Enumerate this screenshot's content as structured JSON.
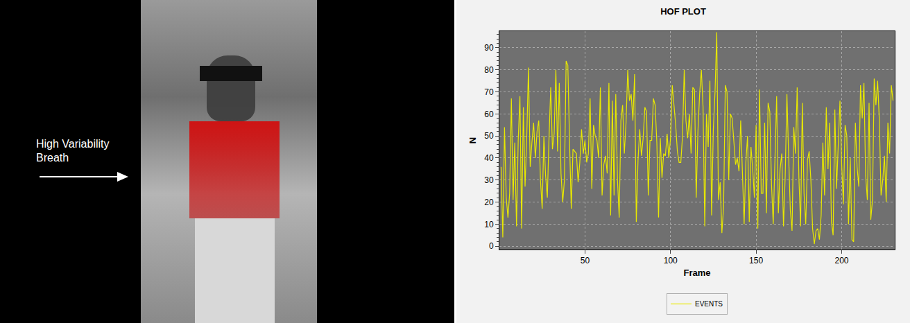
{
  "chart_data": {
    "type": "line",
    "title": "HOF PLOT",
    "x_label": "Frame",
    "y_label": "N",
    "x": [
      1,
      2,
      3,
      4,
      5,
      6,
      7,
      8,
      9,
      10,
      11,
      12,
      13,
      14,
      15,
      16,
      17,
      18,
      19,
      20,
      21,
      22,
      23,
      24,
      25,
      26,
      27,
      28,
      29,
      30,
      31,
      32,
      33,
      34,
      35,
      36,
      37,
      38,
      39,
      40,
      41,
      42,
      43,
      44,
      45,
      46,
      47,
      48,
      49,
      50,
      51,
      52,
      53,
      54,
      55,
      56,
      57,
      58,
      59,
      60,
      61,
      62,
      63,
      64,
      65,
      66,
      67,
      68,
      69,
      70,
      71,
      72,
      73,
      74,
      75,
      76,
      77,
      78,
      79,
      80,
      81,
      82,
      83,
      84,
      85,
      86,
      87,
      88,
      89,
      90,
      91,
      92,
      93,
      94,
      95,
      96,
      97,
      98,
      99,
      100,
      101,
      102,
      103,
      104,
      105,
      106,
      107,
      108,
      109,
      110,
      111,
      112,
      113,
      114,
      115,
      116,
      117,
      118,
      119,
      120,
      121,
      122,
      123,
      124,
      125,
      126,
      127,
      128,
      129,
      130,
      131,
      132,
      133,
      134,
      135,
      136,
      137,
      138,
      139,
      140,
      141,
      142,
      143,
      144,
      145,
      146,
      147,
      148,
      149,
      150,
      151,
      152,
      153,
      154,
      155,
      156,
      157,
      158,
      159,
      160,
      161,
      162,
      163,
      164,
      165,
      166,
      167,
      168,
      169,
      170,
      171,
      172,
      173,
      174,
      175,
      176,
      177,
      178,
      179,
      180,
      181,
      182,
      183,
      184,
      185,
      186,
      187,
      188,
      189,
      190,
      191,
      192,
      193,
      194,
      195,
      196,
      197,
      198,
      199,
      200,
      201,
      202,
      203,
      204,
      205,
      206,
      207,
      208,
      209,
      210,
      211,
      212,
      213,
      214,
      215,
      216,
      217,
      218,
      219,
      220,
      221,
      222,
      223,
      224,
      225,
      226,
      227,
      228,
      229,
      230
    ],
    "series": [
      {
        "name": "EVENTS",
        "color": "#e8e800",
        "values": [
          36,
          4,
          54,
          22,
          13,
          24,
          67,
          21,
          47,
          9,
          48,
          68,
          8,
          63,
          27,
          50,
          81,
          36,
          47,
          56,
          40,
          52,
          57,
          30,
          17,
          50,
          32,
          22,
          49,
          72,
          44,
          51,
          80,
          43,
          74,
          33,
          20,
          30,
          84,
          82,
          47,
          17,
          44,
          43,
          42,
          29,
          38,
          53,
          42,
          48,
          38,
          42,
          67,
          26,
          55,
          50,
          48,
          40,
          72,
          23,
          37,
          41,
          33,
          74,
          14,
          66,
          23,
          69,
          30,
          13,
          57,
          64,
          42,
          56,
          80,
          66,
          69,
          57,
          78,
          11,
          39,
          53,
          41,
          49,
          63,
          61,
          23,
          48,
          48,
          67,
          64,
          47,
          13,
          49,
          31,
          42,
          41,
          51,
          40,
          49,
          73,
          64,
          55,
          43,
          38,
          38,
          50,
          80,
          57,
          49,
          60,
          42,
          72,
          71,
          22,
          52,
          69,
          80,
          63,
          9,
          60,
          45,
          75,
          14,
          53,
          70,
          97,
          21,
          29,
          6,
          18,
          73,
          70,
          30,
          60,
          58,
          48,
          37,
          40,
          34,
          57,
          34,
          10,
          38,
          50,
          11,
          45,
          35,
          22,
          55,
          8,
          71,
          24,
          24,
          56,
          15,
          65,
          61,
          28,
          10,
          42,
          68,
          15,
          35,
          42,
          9,
          32,
          69,
          41,
          16,
          7,
          54,
          42,
          72,
          31,
          9,
          65,
          24,
          10,
          39,
          43,
          30,
          8,
          1,
          7,
          8,
          3,
          14,
          47,
          23,
          63,
          35,
          56,
          11,
          5,
          62,
          26,
          45,
          66,
          37,
          19,
          55,
          50,
          10,
          40,
          3,
          2,
          56,
          36,
          27,
          73,
          58,
          74,
          32,
          21,
          65,
          12,
          21,
          76,
          64,
          75,
          57,
          23,
          30,
          41,
          20,
          56,
          42,
          73,
          66
        ]
      }
    ],
    "xlim": [
      0,
      231
    ],
    "xticks": [
      50,
      100,
      150,
      200
    ],
    "ylim": [
      -1.5,
      97.5
    ],
    "yticks": [
      0,
      10,
      20,
      30,
      40,
      50,
      60,
      70,
      80,
      90
    ],
    "grid": true,
    "legend": "bottom"
  },
  "image_panel": {
    "annotation": "High Variability Breath"
  }
}
